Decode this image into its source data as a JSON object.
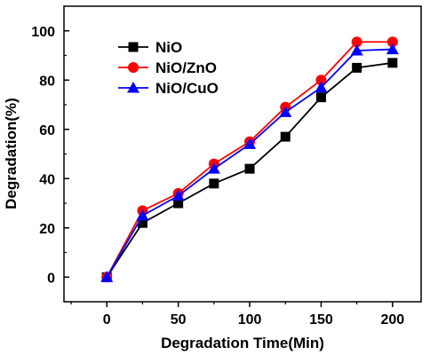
{
  "chart_data": {
    "type": "line",
    "title": "",
    "xlabel": "Degradation Time(Min)",
    "ylabel": "Degradation(%)",
    "xlim": [
      -30,
      220
    ],
    "ylim": [
      -10,
      110
    ],
    "xticks": [
      0,
      50,
      100,
      150,
      200
    ],
    "yticks": [
      0,
      20,
      40,
      60,
      80,
      100
    ],
    "grid": false,
    "legend_position": "top-left",
    "x": [
      0,
      25,
      50,
      75,
      100,
      125,
      150,
      175,
      200
    ],
    "series": [
      {
        "name": "NiO",
        "color": "#000000",
        "marker": "square",
        "values": [
          0,
          22,
          30,
          38,
          44,
          57,
          73,
          85,
          87
        ]
      },
      {
        "name": "NiO/ZnO",
        "color": "#ff0000",
        "marker": "circle",
        "values": [
          0,
          27,
          34,
          46,
          55,
          69,
          80,
          95.5,
          95.5
        ]
      },
      {
        "name": "NiO/CuO",
        "color": "#0000ff",
        "marker": "triangle",
        "values": [
          0,
          25,
          33,
          44,
          54,
          67,
          77,
          92,
          92.5
        ]
      }
    ]
  }
}
